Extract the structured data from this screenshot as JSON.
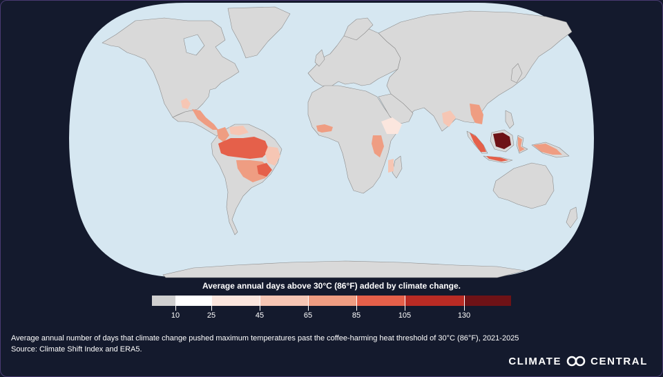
{
  "map": {
    "title": "Average annual days above 30°C (86°F) added by climate change.",
    "colors": {
      "ocean": "#d6e7f1",
      "land": "#d9d9d9",
      "border": "#8a8a8a",
      "background": "#141a2d"
    },
    "legend": {
      "title": "Average annual days above 30°C (86°F) added by climate change.",
      "segments": [
        {
          "color": "#d0d0d0"
        },
        {
          "color": "#ffffff"
        },
        {
          "color": "#fbe6de"
        },
        {
          "color": "#f6c6b4"
        },
        {
          "color": "#ef9d82"
        },
        {
          "color": "#e5604a"
        },
        {
          "color": "#b92b24"
        },
        {
          "color": "#6e1216"
        }
      ],
      "ticks": [
        "10",
        "25",
        "45",
        "65",
        "85",
        "105",
        "130"
      ]
    },
    "hotspots": [
      {
        "region": "Mexico",
        "level": "low"
      },
      {
        "region": "Central America",
        "level": "medium"
      },
      {
        "region": "Colombia",
        "level": "medium"
      },
      {
        "region": "Venezuela",
        "level": "low"
      },
      {
        "region": "Amazon Basin",
        "level": "high"
      },
      {
        "region": "Central Brazil",
        "level": "medium"
      },
      {
        "region": "Eastern Brazil",
        "level": "medium"
      },
      {
        "region": "West Africa",
        "level": "medium"
      },
      {
        "region": "Ethiopia",
        "level": "low"
      },
      {
        "region": "East Africa",
        "level": "medium"
      },
      {
        "region": "India",
        "level": "low"
      },
      {
        "region": "Southeast Asia",
        "level": "medium"
      },
      {
        "region": "Sumatra",
        "level": "high"
      },
      {
        "region": "Borneo",
        "level": "very-high"
      },
      {
        "region": "Sulawesi",
        "level": "medium"
      },
      {
        "region": "New Guinea",
        "level": "medium"
      }
    ]
  },
  "caption": "Average annual number of days that climate change pushed maximum temperatures past the coffee-harming heat threshold of 30°C (86°F), 2021-2025",
  "source": "Source: Climate Shift Index and ERA5.",
  "brand": {
    "left": "CLIMATE",
    "right": "CENTRAL"
  }
}
